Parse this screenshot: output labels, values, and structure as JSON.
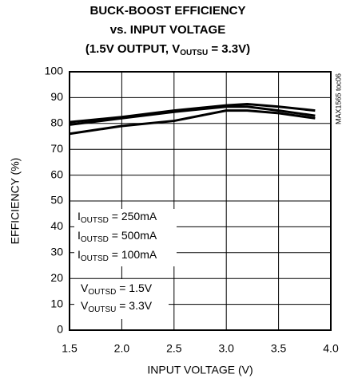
{
  "chart_data": {
    "type": "line",
    "title": [
      "BUCK-BOOST EFFICIENCY",
      "vs. INPUT VOLTAGE",
      [
        "(1.5V OUTPUT, V",
        "OUTSU",
        " = 3.3V)"
      ]
    ],
    "x_label": "INPUT VOLTAGE (V)",
    "y_label": "EFFICIENCY (%)",
    "side_note": "MAX1565 toc06",
    "x": [
      1.5,
      2.0,
      2.5,
      3.0,
      3.2,
      3.5,
      3.85
    ],
    "series": [
      {
        "name": [
          "I",
          "OUTSD",
          " = 250mA"
        ],
        "color": "#000000",
        "values": [
          80.5,
          82.5,
          85,
          87,
          87.5,
          86.5,
          85
        ]
      },
      {
        "name": [
          "I",
          "OUTSD",
          " = 500mA"
        ],
        "color": "#000000",
        "values": [
          79.5,
          82,
          84.5,
          86.5,
          86.5,
          85,
          83
        ]
      },
      {
        "name": [
          "I",
          "OUTSD",
          " = 100mA"
        ],
        "color": "#000000",
        "values": [
          76,
          79,
          81,
          85,
          85,
          84,
          82
        ]
      }
    ],
    "annotations": [
      [
        "V",
        "OUTSD",
        " = 1.5V"
      ],
      [
        "V",
        "OUTSU",
        " = 3.3V"
      ]
    ],
    "xlim": [
      1.5,
      4.0
    ],
    "xticks": [
      1.5,
      {
        "value": 2,
        "label": "2.0"
      },
      2.5,
      {
        "value": 3,
        "label": "3.0"
      },
      3.5,
      {
        "value": 4,
        "label": "4.0"
      }
    ],
    "ylim": [
      0,
      100
    ],
    "yticks": [
      0,
      10,
      20,
      30,
      40,
      50,
      60,
      70,
      80,
      90,
      100
    ],
    "grid": true
  }
}
